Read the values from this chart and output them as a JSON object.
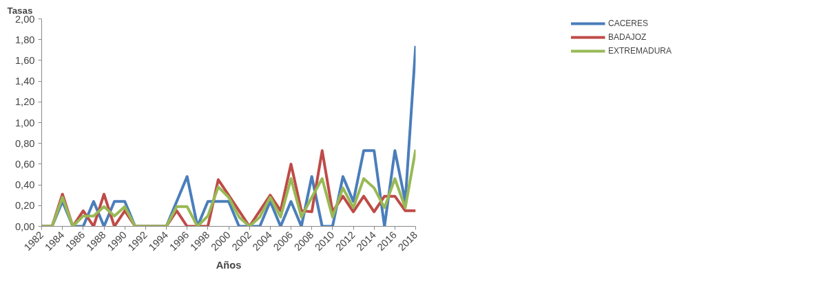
{
  "chart_data": {
    "type": "line",
    "ylabel": "Tasas",
    "xlabel": "Años",
    "x": [
      1982,
      1983,
      1984,
      1985,
      1986,
      1987,
      1988,
      1989,
      1990,
      1991,
      1992,
      1993,
      1994,
      1995,
      1996,
      1997,
      1998,
      1999,
      2000,
      2001,
      2002,
      2003,
      2004,
      2005,
      2006,
      2007,
      2008,
      2009,
      2010,
      2011,
      2012,
      2013,
      2014,
      2015,
      2016,
      2017,
      2018
    ],
    "series": [
      {
        "name": "CACERES",
        "color": "#4a7ebb",
        "values": [
          0,
          0,
          0.24,
          0,
          0,
          0.24,
          0,
          0.24,
          0.24,
          0,
          0,
          0,
          0,
          0.24,
          0.48,
          0,
          0.24,
          0.24,
          0.24,
          0,
          0,
          0,
          0.24,
          0,
          0.24,
          0,
          0.48,
          0,
          0,
          0.48,
          0.24,
          0.73,
          0.73,
          0,
          0.73,
          0.24,
          1.74
        ]
      },
      {
        "name": "BADAJOZ",
        "color": "#be4b48",
        "values": [
          0,
          0,
          0.31,
          0,
          0.15,
          0,
          0.31,
          0,
          0.15,
          0,
          0,
          0,
          0,
          0.15,
          0,
          0,
          0,
          0.45,
          0.3,
          0.15,
          0,
          0.15,
          0.3,
          0.15,
          0.6,
          0.15,
          0.14,
          0.73,
          0.14,
          0.29,
          0.14,
          0.29,
          0.14,
          0.29,
          0.29,
          0.15,
          0.15
        ]
      },
      {
        "name": "EXTREMADURA",
        "color": "#98b954",
        "values": [
          0,
          0,
          0.28,
          0,
          0.1,
          0.1,
          0.19,
          0.1,
          0.19,
          0,
          0,
          0,
          0,
          0.19,
          0.19,
          0,
          0.1,
          0.38,
          0.28,
          0.09,
          0,
          0.09,
          0.28,
          0.09,
          0.46,
          0.09,
          0.28,
          0.46,
          0.09,
          0.37,
          0.18,
          0.46,
          0.37,
          0.18,
          0.46,
          0.18,
          0.74
        ]
      }
    ],
    "xlim": [
      1982,
      2018
    ],
    "xticks": [
      1982,
      1984,
      1986,
      1988,
      1990,
      1992,
      1994,
      1996,
      1998,
      2000,
      2002,
      2004,
      2006,
      2008,
      2010,
      2012,
      2014,
      2016,
      2018
    ],
    "ylim": [
      0,
      2
    ],
    "yticks": [
      {
        "value": 0,
        "label": "0,00"
      },
      {
        "value": 0.2,
        "label": "0,20"
      },
      {
        "value": 0.4,
        "label": "0,40"
      },
      {
        "value": 0.6,
        "label": "0,60"
      },
      {
        "value": 0.8,
        "label": "0,80"
      },
      {
        "value": 1,
        "label": "1,00"
      },
      {
        "value": 1.2,
        "label": "1,20"
      },
      {
        "value": 1.4,
        "label": "1,40"
      },
      {
        "value": 1.6,
        "label": "1,60"
      },
      {
        "value": 1.8,
        "label": "1,80"
      },
      {
        "value": 2,
        "label": "2,00"
      }
    ],
    "grid": false,
    "legend": "top right",
    "line_style": "solid"
  }
}
